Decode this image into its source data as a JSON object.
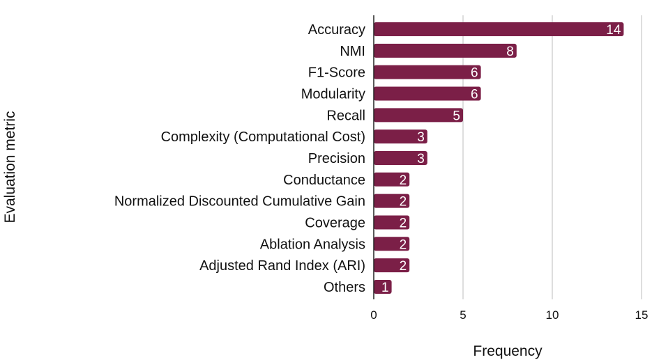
{
  "chart_data": {
    "type": "bar",
    "orientation": "horizontal",
    "categories": [
      "Accuracy",
      "NMI",
      "F1-Score",
      "Modularity",
      "Recall",
      "Complexity (Computational Cost)",
      "Precision",
      "Conductance",
      "Normalized Discounted Cumulative Gain",
      "Coverage",
      "Ablation Analysis",
      "Adjusted Rand Index (ARI)",
      "Others"
    ],
    "values": [
      14,
      8,
      6,
      6,
      5,
      3,
      3,
      2,
      2,
      2,
      2,
      2,
      1
    ],
    "data_labels": [
      "14",
      "8",
      "6",
      "6",
      "5",
      "3",
      "3",
      "2",
      "2",
      "2",
      "2",
      "2",
      "1"
    ],
    "xlabel": "Frequency",
    "ylabel": "Evaluation metric",
    "xlim": [
      0,
      15
    ],
    "xticks": [
      0,
      5,
      10,
      15
    ],
    "xtick_labels": [
      "0",
      "5",
      "10",
      "15"
    ],
    "grid": "vertical",
    "legend": "none",
    "colors": {
      "bar": "#7b1f47",
      "grid": "#c8c8c8",
      "axis": "#222222",
      "value_label": "#ffffff"
    }
  }
}
